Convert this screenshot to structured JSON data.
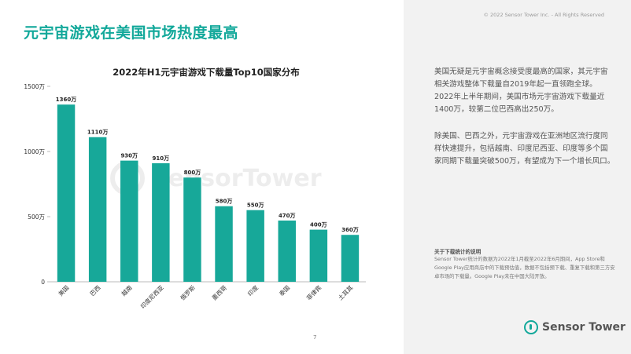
{
  "page": {
    "title": "元宇宙游戏在美国市场热度最高",
    "copyright": "© 2022 Sensor Tower Inc. - All Rights Reserved",
    "page_number": "7",
    "logo_text": "Sensor Tower",
    "watermark_text": "SensorTower"
  },
  "sidebar": {
    "paragraph1": "美国无疑是元宇宙概念接受度最高的国家，其元宇宙相关游戏整体下载量自2019年起一直领跑全球。2022年上半年期间，美国市场元宇宙游戏下载量近1400万，较第二位巴西高出250万。",
    "paragraph2": "除美国、巴西之外，元宇宙游戏在亚洲地区流行度同样快速提升，包括越南、印度尼西亚、印度等多个国家同期下载量突破500万，有望成为下一个增长风口。",
    "note_title": "关于下载统计的说明",
    "note_text": "Sensor Tower统计的数据为2022年1月截至2022年6月期间，App Store和Google Play应用商店中的下载预估值，数据不包括预下载、重复下载和第三方安卓市场的下载量。Google Play未在中国大陆开放。"
  },
  "colors": {
    "accent": "#12a89a",
    "bar": "#17a899"
  },
  "chart_data": {
    "type": "bar",
    "title": "2022年H1元宇宙游戏下载量Top10国家分布",
    "categories": [
      "美国",
      "巴西",
      "越南",
      "印度尼西亚",
      "俄罗斯",
      "墨西哥",
      "印度",
      "泰国",
      "菲律宾",
      "土耳其"
    ],
    "values": [
      1360,
      1110,
      930,
      910,
      800,
      580,
      550,
      470,
      400,
      360
    ],
    "data_labels": [
      "1360万",
      "1110万",
      "930万",
      "910万",
      "800万",
      "580万",
      "550万",
      "470万",
      "400万",
      "360万"
    ],
    "y_ticks": [
      0,
      500,
      1000,
      1500
    ],
    "y_tick_labels": [
      "0",
      "500万",
      "1000万",
      "1500万"
    ],
    "ylim": [
      0,
      1500
    ],
    "grid": false,
    "legend": "none"
  }
}
